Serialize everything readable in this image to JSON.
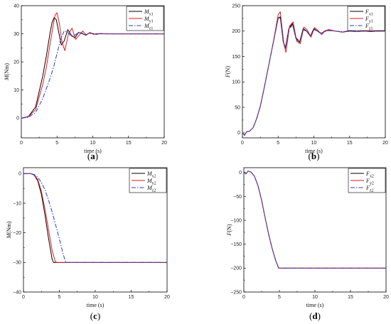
{
  "chart_data": [
    {
      "type": "line",
      "panel_label": "a",
      "xlabel": "time (s)",
      "ylabel": "M(Nm)",
      "ylabel_main": "M",
      "ylabel_unit": "(Nm)",
      "xlim": [
        0,
        20
      ],
      "ylim": [
        -7,
        40
      ],
      "xticks": [
        0,
        5,
        10,
        15,
        20
      ],
      "yticks": [
        0,
        10,
        20,
        30,
        40
      ],
      "legend_position": "top-right",
      "series": [
        {
          "name": "Mx1",
          "name_main": "M",
          "name_sub": "x1",
          "color": "#000000",
          "dash": "solid",
          "x": [
            0,
            1,
            2,
            3,
            3.5,
            4,
            4.3,
            4.6,
            4.9,
            5.2,
            5.6,
            6.0,
            6.5,
            7.0,
            7.5,
            8.0,
            8.5,
            9.0,
            9.5,
            10,
            10.5,
            11,
            12,
            13,
            14,
            15,
            16,
            17,
            18,
            19,
            20
          ],
          "y": [
            0,
            0.6,
            4,
            15,
            22,
            30,
            34,
            35.8,
            35,
            31,
            26,
            27.5,
            31.5,
            29.5,
            28.5,
            30.5,
            30.2,
            29.5,
            30.3,
            30.1,
            29.8,
            30.1,
            30,
            30,
            30,
            30,
            30,
            30,
            30,
            30,
            30
          ]
        },
        {
          "name": "My1",
          "name_main": "M",
          "name_sub": "y1",
          "color": "#e41a1c",
          "dash": "solid",
          "x": [
            0,
            1,
            2,
            3,
            3.5,
            4,
            4.4,
            4.7,
            5.0,
            5.3,
            5.7,
            6.1,
            6.6,
            7.1,
            7.6,
            8.1,
            8.6,
            9.1,
            9.6,
            10.1,
            10.6,
            11.1,
            12,
            13,
            14,
            15,
            16,
            17,
            18,
            19,
            20
          ],
          "y": [
            0,
            0.5,
            3,
            12,
            18,
            26,
            32,
            36.5,
            37.5,
            34,
            27,
            24,
            30,
            32,
            28,
            29.5,
            31,
            29.5,
            30.5,
            29.8,
            30.1,
            30,
            30,
            30,
            30,
            30,
            30,
            30,
            30,
            30,
            30
          ]
        },
        {
          "name": "Mz1",
          "name_main": "M",
          "name_sub": "z1",
          "color": "#1f3fd6",
          "dash": "dashdot",
          "x": [
            0,
            1,
            2,
            3,
            4,
            4.5,
            5,
            5.5,
            6.0,
            6.5,
            7.0,
            7.5,
            8.0,
            8.5,
            9.0,
            9.5,
            10,
            10.5,
            11,
            12,
            13,
            14,
            15,
            16,
            17,
            18,
            19,
            20
          ],
          "y": [
            0,
            0.3,
            2,
            7,
            14,
            18,
            23,
            28,
            31,
            30.5,
            29,
            29.5,
            30.5,
            30,
            29.6,
            30.2,
            30,
            29.9,
            30,
            30,
            30,
            30,
            30,
            30,
            30,
            30,
            30,
            30
          ]
        }
      ]
    },
    {
      "type": "line",
      "panel_label": "b",
      "xlabel": "time (s)",
      "ylabel": "F(N)",
      "ylabel_main": "F",
      "ylabel_unit": "(N)",
      "xlim": [
        0,
        20
      ],
      "ylim": [
        -10,
        250
      ],
      "xticks": [
        0,
        5,
        10,
        15,
        20
      ],
      "yticks": [
        0,
        50,
        100,
        150,
        200,
        250
      ],
      "legend_position": "top-right",
      "series": [
        {
          "name": "Fx1",
          "name_main": "F",
          "name_sub": "x1",
          "color": "#000000",
          "dash": "solid",
          "x": [
            0,
            0.3,
            0.6,
            1,
            1.5,
            2,
            2.5,
            3,
            3.5,
            4,
            4.5,
            5.0,
            5.3,
            5.7,
            6.0,
            6.5,
            7.0,
            7.5,
            8.0,
            8.5,
            9.0,
            9.5,
            10,
            10.5,
            11,
            11.5,
            12,
            13,
            14,
            15,
            16,
            17,
            18,
            19,
            20
          ],
          "y": [
            0,
            -5,
            2,
            3,
            10,
            28,
            52,
            85,
            120,
            155,
            190,
            226,
            228,
            180,
            165,
            205,
            215,
            185,
            178,
            205,
            200,
            190,
            205,
            200,
            195,
            200,
            202,
            200,
            198,
            200,
            199,
            200,
            199,
            200,
            200
          ]
        },
        {
          "name": "Fy1",
          "name_main": "F",
          "name_sub": "y1",
          "color": "#e41a1c",
          "dash": "solid",
          "x": [
            0,
            0.3,
            0.6,
            1,
            1.5,
            2,
            2.5,
            3,
            3.5,
            4,
            4.5,
            5.0,
            5.3,
            5.8,
            6.1,
            6.6,
            7.1,
            7.6,
            8.1,
            8.6,
            9.1,
            9.6,
            10.1,
            10.6,
            11.1,
            11.6,
            12.1,
            13,
            14,
            15,
            16,
            17,
            18,
            19,
            20
          ],
          "y": [
            0,
            -4,
            2,
            3,
            10,
            28,
            52,
            85,
            120,
            155,
            192,
            232,
            238,
            175,
            158,
            210,
            218,
            180,
            175,
            208,
            202,
            188,
            207,
            201,
            193,
            201,
            203,
            200,
            198,
            201,
            199,
            200,
            199,
            200,
            200
          ]
        },
        {
          "name": "Fz1",
          "name_main": "F",
          "name_sub": "z1",
          "color": "#1f3fd6",
          "dash": "dashdot",
          "x": [
            0,
            0.3,
            0.6,
            1,
            1.5,
            2,
            2.5,
            3,
            3.5,
            4,
            4.5,
            5.0,
            5.3,
            5.7,
            6.0,
            6.5,
            7.0,
            7.5,
            8.0,
            8.5,
            9.0,
            9.5,
            10,
            10.5,
            11,
            12,
            13,
            14,
            15,
            16,
            17,
            18,
            19,
            20
          ],
          "y": [
            0,
            -5,
            2,
            3,
            10,
            28,
            52,
            85,
            120,
            155,
            190,
            224,
            226,
            182,
            168,
            203,
            212,
            187,
            180,
            203,
            199,
            191,
            203,
            200,
            196,
            201,
            200,
            199,
            200,
            199,
            200,
            200,
            200,
            200
          ]
        }
      ]
    },
    {
      "type": "line",
      "panel_label": "c",
      "xlabel": "time (s)",
      "ylabel": "M(Nm)",
      "ylabel_main": "M",
      "ylabel_unit": "(Nm)",
      "xlim": [
        0,
        20
      ],
      "ylim": [
        -40,
        2
      ],
      "xticks": [
        0,
        5,
        10,
        15,
        20
      ],
      "yticks": [
        -40,
        -30,
        -20,
        -10,
        0
      ],
      "legend_position": "top-right",
      "series": [
        {
          "name": "Mx2",
          "name_main": "M",
          "name_sub": "x2",
          "color": "#000000",
          "dash": "solid",
          "x": [
            0,
            1,
            1.5,
            2,
            2.5,
            3,
            3.5,
            4.0,
            4.2,
            20
          ],
          "y": [
            0,
            0,
            -0.5,
            -2.5,
            -7,
            -14,
            -22,
            -29,
            -30,
            -30
          ]
        },
        {
          "name": "My2",
          "name_main": "M",
          "name_sub": "y2",
          "color": "#e41a1c",
          "dash": "solid",
          "x": [
            0,
            1,
            1.5,
            2,
            2.5,
            3,
            3.5,
            4.0,
            4.4,
            4.6,
            20
          ],
          "y": [
            0,
            0,
            -0.4,
            -2,
            -6,
            -12,
            -19,
            -26,
            -29.5,
            -30,
            -30
          ]
        },
        {
          "name": "Mz2",
          "name_main": "M",
          "name_sub": "z2",
          "color": "#1f3fd6",
          "dash": "dashdot",
          "x": [
            0,
            1,
            1.5,
            2,
            2.5,
            3,
            3.5,
            4,
            4.5,
            5,
            5.5,
            5.9,
            20
          ],
          "y": [
            0,
            0,
            -0.3,
            -1.2,
            -3,
            -5.5,
            -9,
            -13,
            -17.5,
            -22,
            -27,
            -30,
            -30
          ]
        }
      ]
    },
    {
      "type": "line",
      "panel_label": "d",
      "xlabel": "time (s)",
      "ylabel": "F(N)",
      "ylabel_main": "F",
      "ylabel_unit": "(N)",
      "xlim": [
        0,
        20
      ],
      "ylim": [
        -250,
        10
      ],
      "xticks": [
        0,
        5,
        10,
        15,
        20
      ],
      "yticks": [
        -250,
        -200,
        -150,
        -100,
        -50,
        0
      ],
      "legend_position": "top-right",
      "series": [
        {
          "name": "Fx2",
          "name_main": "F",
          "name_sub": "x2",
          "color": "#000000",
          "dash": "solid",
          "x": [
            0,
            0.3,
            0.6,
            1,
            1.5,
            2,
            2.5,
            3,
            3.5,
            4,
            4.5,
            4.9,
            20
          ],
          "y": [
            0,
            -3,
            3,
            1,
            -8,
            -28,
            -58,
            -95,
            -130,
            -160,
            -185,
            -200,
            -200
          ]
        },
        {
          "name": "Fy2",
          "name_main": "F",
          "name_sub": "y2",
          "color": "#e41a1c",
          "dash": "solid",
          "x": [
            0,
            0.3,
            0.6,
            1,
            1.5,
            2,
            2.5,
            3,
            3.5,
            4,
            4.5,
            4.9,
            20
          ],
          "y": [
            0,
            -3,
            3,
            1,
            -8,
            -28,
            -58,
            -95,
            -130,
            -160,
            -185,
            -200,
            -200
          ]
        },
        {
          "name": "Fz2",
          "name_main": "F",
          "name_sub": "z2",
          "color": "#1f3fd6",
          "dash": "dashdot",
          "x": [
            0,
            0.3,
            0.6,
            1,
            1.5,
            2,
            2.5,
            3,
            3.5,
            4,
            4.5,
            4.9,
            20
          ],
          "y": [
            0,
            -3,
            3,
            1,
            -8,
            -28,
            -58,
            -95,
            -130,
            -160,
            -185,
            -200,
            -200
          ]
        }
      ]
    }
  ],
  "colors": {
    "frame": "#000000",
    "background": "#ffffff"
  }
}
